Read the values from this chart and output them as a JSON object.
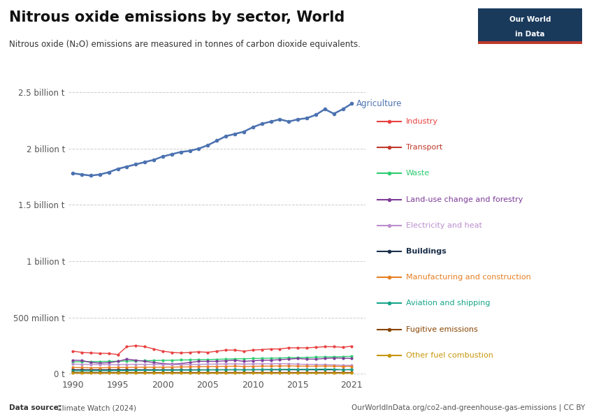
{
  "title": "Nitrous oxide emissions by sector, World",
  "subtitle": "Nitrous oxide (N₂O) emissions are measured in tonnes of carbon dioxide equivalents.",
  "footer_left_bold": "Data source:",
  "footer_left_rest": " Climate Watch (2024)",
  "footer_right": "OurWorldInData.org/co2-and-greenhouse-gas-emissions | CC BY",
  "years": [
    1990,
    1991,
    1992,
    1993,
    1994,
    1995,
    1996,
    1997,
    1998,
    1999,
    2000,
    2001,
    2002,
    2003,
    2004,
    2005,
    2006,
    2007,
    2008,
    2009,
    2010,
    2011,
    2012,
    2013,
    2014,
    2015,
    2016,
    2017,
    2018,
    2019,
    2020,
    2021
  ],
  "series": [
    {
      "name": "Agriculture",
      "color": "#4C72B0",
      "values": [
        1780000000.0,
        1770000000.0,
        1760000000.0,
        1770000000.0,
        1790000000.0,
        1820000000.0,
        1840000000.0,
        1860000000.0,
        1880000000.0,
        1900000000.0,
        1930000000.0,
        1950000000.0,
        1970000000.0,
        1980000000.0,
        2000000000.0,
        2030000000.0,
        2070000000.0,
        2110000000.0,
        2130000000.0,
        2150000000.0,
        2190000000.0,
        2220000000.0,
        2240000000.0,
        2260000000.0,
        2240000000.0,
        2260000000.0,
        2270000000.0,
        2300000000.0,
        2350000000.0,
        2310000000.0,
        2350000000.0,
        2400000000.0
      ]
    },
    {
      "name": "Industry",
      "color": "#E84040",
      "values": [
        200000000.0,
        190000000.0,
        185000000.0,
        182000000.0,
        180000000.0,
        170000000.0,
        240000000.0,
        250000000.0,
        240000000.0,
        220000000.0,
        200000000.0,
        190000000.0,
        185000000.0,
        190000000.0,
        195000000.0,
        190000000.0,
        200000000.0,
        210000000.0,
        210000000.0,
        200000000.0,
        210000000.0,
        215000000.0,
        220000000.0,
        220000000.0,
        230000000.0,
        230000000.0,
        230000000.0,
        235000000.0,
        240000000.0,
        240000000.0,
        235000000.0,
        245000000.0
      ]
    },
    {
      "name": "Transport",
      "color": "#C0392B",
      "values": [
        null,
        null,
        null,
        null,
        null,
        null,
        null,
        null,
        null,
        null,
        null,
        null,
        null,
        null,
        null,
        null,
        null,
        null,
        null,
        null,
        null,
        null,
        null,
        null,
        null,
        null,
        null,
        null,
        null,
        null,
        null,
        null
      ]
    },
    {
      "name": "Waste",
      "color": "#2ECC71",
      "values": [
        105000000.0,
        107000000.0,
        108000000.0,
        109000000.0,
        110000000.0,
        111000000.0,
        113000000.0,
        114000000.0,
        116000000.0,
        117000000.0,
        119000000.0,
        120000000.0,
        122000000.0,
        123000000.0,
        125000000.0,
        126000000.0,
        128000000.0,
        130000000.0,
        132000000.0,
        133000000.0,
        135000000.0,
        137000000.0,
        138000000.0,
        140000000.0,
        142000000.0,
        143000000.0,
        145000000.0,
        147000000.0,
        149000000.0,
        150000000.0,
        152000000.0,
        154000000.0
      ]
    },
    {
      "name": "Land-use change and forestry",
      "color": "#7D3C98",
      "values": [
        120000000.0,
        118000000.0,
        100000000.0,
        95000000.0,
        98000000.0,
        110000000.0,
        130000000.0,
        120000000.0,
        110000000.0,
        100000000.0,
        90000000.0,
        85000000.0,
        90000000.0,
        100000000.0,
        110000000.0,
        110000000.0,
        110000000.0,
        115000000.0,
        120000000.0,
        110000000.0,
        115000000.0,
        120000000.0,
        120000000.0,
        125000000.0,
        130000000.0,
        135000000.0,
        130000000.0,
        130000000.0,
        135000000.0,
        140000000.0,
        138000000.0,
        135000000.0
      ]
    },
    {
      "name": "Electricity and heat",
      "color": "#BB8FCE",
      "values": [
        85000000.0,
        84000000.0,
        83000000.0,
        82000000.0,
        81000000.0,
        80000000.0,
        82000000.0,
        83000000.0,
        84000000.0,
        83000000.0,
        82000000.0,
        81000000.0,
        80000000.0,
        82000000.0,
        84000000.0,
        85000000.0,
        86000000.0,
        87000000.0,
        88000000.0,
        85000000.0,
        87000000.0,
        88000000.0,
        89000000.0,
        90000000.0,
        88000000.0,
        85000000.0,
        83000000.0,
        82000000.0,
        80000000.0,
        78000000.0,
        75000000.0,
        74000000.0
      ]
    },
    {
      "name": "Buildings",
      "color": "#1A2F4A",
      "values": [
        40000000.0,
        40000000.0,
        40000000.0,
        40000000.0,
        40000000.0,
        40000000.0,
        40000000.0,
        40000000.0,
        40000000.0,
        40000000.0,
        40000000.0,
        40000000.0,
        40000000.0,
        40000000.0,
        40000000.0,
        40000000.0,
        40000000.0,
        40000000.0,
        40000000.0,
        40000000.0,
        40000000.0,
        40000000.0,
        40000000.0,
        40000000.0,
        40000000.0,
        40000000.0,
        40000000.0,
        40000000.0,
        40000000.0,
        40000000.0,
        40000000.0,
        40000000.0
      ]
    },
    {
      "name": "Manufacturing and construction",
      "color": "#E67E22",
      "values": [
        55000000.0,
        54000000.0,
        53000000.0,
        53000000.0,
        54000000.0,
        55000000.0,
        56000000.0,
        57000000.0,
        58000000.0,
        57000000.0,
        58000000.0,
        59000000.0,
        60000000.0,
        61000000.0,
        63000000.0,
        64000000.0,
        65000000.0,
        66000000.0,
        67000000.0,
        65000000.0,
        66000000.0,
        67000000.0,
        68000000.0,
        69000000.0,
        70000000.0,
        68000000.0,
        67000000.0,
        67000000.0,
        68000000.0,
        67000000.0,
        65000000.0,
        66000000.0
      ]
    },
    {
      "name": "Aviation and shipping",
      "color": "#17A589",
      "values": [
        25000000.0,
        26000000.0,
        26000000.0,
        27000000.0,
        27000000.0,
        28000000.0,
        28000000.0,
        29000000.0,
        30000000.0,
        30000000.0,
        31000000.0,
        31000000.0,
        32000000.0,
        32000000.0,
        33000000.0,
        34000000.0,
        35000000.0,
        35000000.0,
        36000000.0,
        35000000.0,
        36000000.0,
        37000000.0,
        38000000.0,
        38000000.0,
        39000000.0,
        39000000.0,
        39000000.0,
        40000000.0,
        41000000.0,
        40000000.0,
        35000000.0,
        38000000.0
      ]
    },
    {
      "name": "Fugitive emissions",
      "color": "#884400",
      "values": [
        15000000.0,
        15000000.0,
        15000000.0,
        15000000.0,
        15000000.0,
        15000000.0,
        15000000.0,
        15000000.0,
        15000000.0,
        15000000.0,
        15000000.0,
        15000000.0,
        15000000.0,
        15000000.0,
        15000000.0,
        15000000.0,
        15000000.0,
        15000000.0,
        15000000.0,
        15000000.0,
        15000000.0,
        15000000.0,
        15000000.0,
        15000000.0,
        15000000.0,
        15000000.0,
        15000000.0,
        15000000.0,
        15000000.0,
        15000000.0,
        15000000.0,
        15000000.0
      ]
    },
    {
      "name": "Other fuel combustion",
      "color": "#C8960C",
      "values": [
        10000000.0,
        10000000.0,
        10000000.0,
        10000000.0,
        10000000.0,
        10000000.0,
        10000000.0,
        10000000.0,
        10000000.0,
        10000000.0,
        10000000.0,
        10000000.0,
        10000000.0,
        10000000.0,
        10000000.0,
        10000000.0,
        10000000.0,
        10000000.0,
        10000000.0,
        10000000.0,
        10000000.0,
        10000000.0,
        10000000.0,
        10000000.0,
        10000000.0,
        10000000.0,
        10000000.0,
        10000000.0,
        10000000.0,
        10000000.0,
        10000000.0,
        10000000.0
      ]
    }
  ],
  "legend_items": [
    {
      "name": "Industry",
      "color": "#E84040"
    },
    {
      "name": "Transport",
      "color": "#C0392B"
    },
    {
      "name": "Waste",
      "color": "#2ECC71"
    },
    {
      "name": "Land-use change and forestry",
      "color": "#7D3C98"
    },
    {
      "name": "Electricity and heat",
      "color": "#BB8FCE"
    },
    {
      "name": "Buildings",
      "color": "#1A2F4A",
      "bold": true
    },
    {
      "name": "Manufacturing and construction",
      "color": "#E67E22"
    },
    {
      "name": "Aviation and shipping",
      "color": "#17A589"
    },
    {
      "name": "Fugitive emissions",
      "color": "#884400"
    },
    {
      "name": "Other fuel combustion",
      "color": "#C8960C"
    }
  ],
  "yticks": [
    0,
    500000000.0,
    1000000000.0,
    1500000000.0,
    2000000000.0,
    2500000000.0
  ],
  "ytick_labels": [
    "0 t",
    "500 million t",
    "1 billion t",
    "1.5 billion t",
    "2 billion t",
    "2.5 billion t"
  ],
  "ylim": [
    -30000000.0,
    2650000000.0
  ],
  "xlim": [
    1989.5,
    2022.5
  ],
  "background_color": "#FFFFFF"
}
